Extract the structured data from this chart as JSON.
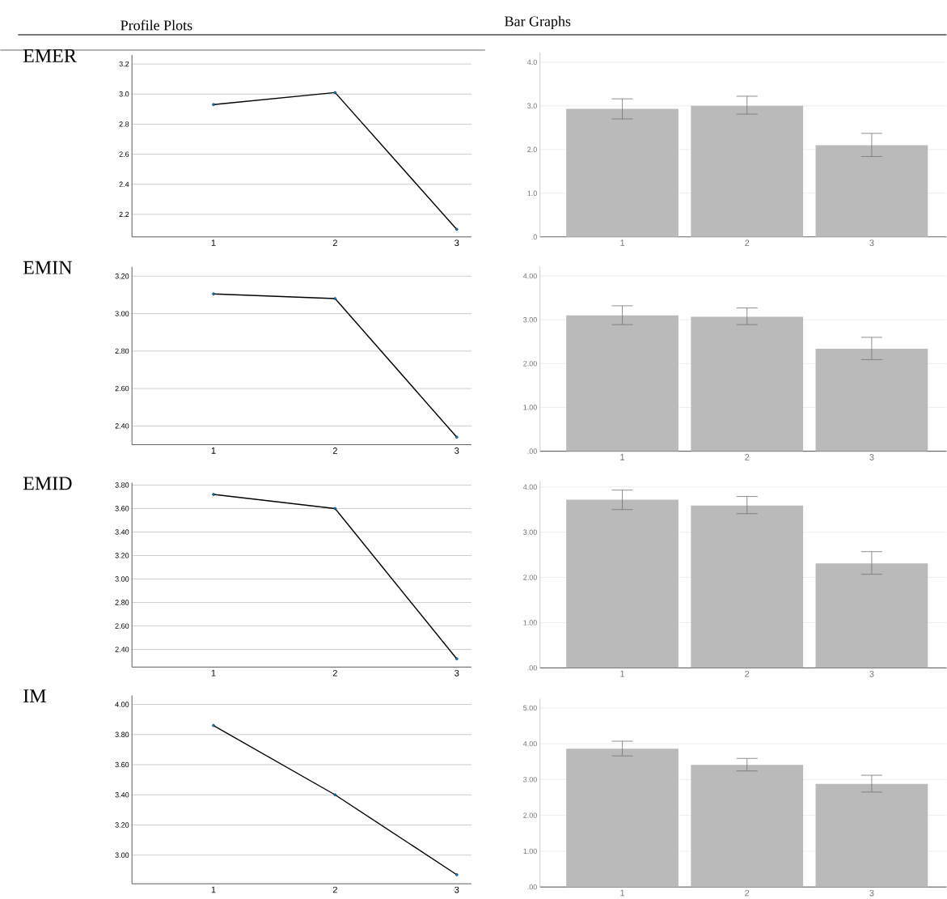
{
  "chart_data": [
    {
      "type": "line",
      "title": "EMER",
      "annotations": [
        "Profile Plots"
      ],
      "categories": [
        "1",
        "2",
        "3"
      ],
      "values": [
        2.93,
        3.01,
        2.1
      ],
      "color": "#000000",
      "marker": "circle",
      "grid": "y",
      "ylim": [
        2.05,
        3.26
      ],
      "yticks": [
        {
          "value": 2.2,
          "label": "2.2"
        },
        {
          "value": 2.4,
          "label": "2.4"
        },
        {
          "value": 2.6,
          "label": "2.6"
        },
        {
          "value": 2.8,
          "label": "2.8"
        },
        {
          "value": 3.0,
          "label": "3.0"
        },
        {
          "value": 3.2,
          "label": "3.2"
        }
      ]
    },
    {
      "type": "bar",
      "annotations": [
        "Bar Graphs"
      ],
      "categories": [
        "1",
        "2",
        "3"
      ],
      "values": [
        2.93,
        3.0,
        2.1
      ],
      "errors": [
        [
          2.7,
          3.16
        ],
        [
          2.81,
          3.22
        ],
        [
          1.84,
          2.37
        ]
      ],
      "color": "#bababa",
      "grid": "y",
      "ylim": [
        0,
        4.22
      ],
      "yticks": [
        {
          "value": 0,
          "label": ".0"
        },
        {
          "value": 1,
          "label": "1.0"
        },
        {
          "value": 2,
          "label": "2.0"
        },
        {
          "value": 3,
          "label": "3.0"
        },
        {
          "value": 4,
          "label": "4.0"
        }
      ]
    },
    {
      "type": "line",
      "title": "EMIN",
      "categories": [
        "1",
        "2",
        "3"
      ],
      "values": [
        3.105,
        3.08,
        2.34
      ],
      "color": "#000000",
      "marker": "circle",
      "grid": "y",
      "ylim": [
        2.3,
        3.25
      ],
      "yticks": [
        {
          "value": 2.4,
          "label": "2.40"
        },
        {
          "value": 2.6,
          "label": "2.60"
        },
        {
          "value": 2.8,
          "label": "2.80"
        },
        {
          "value": 3.0,
          "label": "3.00"
        },
        {
          "value": 3.2,
          "label": "3.20"
        }
      ]
    },
    {
      "type": "bar",
      "categories": [
        "1",
        "2",
        "3"
      ],
      "values": [
        3.1,
        3.07,
        2.34
      ],
      "errors": [
        [
          2.89,
          3.32
        ],
        [
          2.89,
          3.27
        ],
        [
          2.09,
          2.6
        ]
      ],
      "color": "#bababa",
      "grid": "y",
      "ylim": [
        0,
        4.21
      ],
      "yticks": [
        {
          "value": 0,
          "label": ".00"
        },
        {
          "value": 1,
          "label": "1.00"
        },
        {
          "value": 2,
          "label": "2.00"
        },
        {
          "value": 3,
          "label": "3.00"
        },
        {
          "value": 4,
          "label": "4.00"
        }
      ]
    },
    {
      "type": "line",
      "title": "EMID",
      "categories": [
        "1",
        "2",
        "3"
      ],
      "values": [
        3.72,
        3.6,
        2.32
      ],
      "color": "#000000",
      "marker": "circle",
      "grid": "y",
      "ylim": [
        2.25,
        3.82
      ],
      "yticks": [
        {
          "value": 2.4,
          "label": "2.40"
        },
        {
          "value": 2.6,
          "label": "2.60"
        },
        {
          "value": 2.8,
          "label": "2.80"
        },
        {
          "value": 3.0,
          "label": "3.00"
        },
        {
          "value": 3.2,
          "label": "3.20"
        },
        {
          "value": 3.4,
          "label": "3.40"
        },
        {
          "value": 3.6,
          "label": "3.60"
        },
        {
          "value": 3.8,
          "label": "3.80"
        }
      ]
    },
    {
      "type": "bar",
      "categories": [
        "1",
        "2",
        "3"
      ],
      "values": [
        3.72,
        3.59,
        2.31
      ],
      "errors": [
        [
          3.5,
          3.93
        ],
        [
          3.41,
          3.79
        ],
        [
          2.07,
          2.57
        ]
      ],
      "color": "#bababa",
      "grid": "y",
      "ylim": [
        0,
        4.13
      ],
      "yticks": [
        {
          "value": 0,
          "label": ".00"
        },
        {
          "value": 1,
          "label": "1.00"
        },
        {
          "value": 2,
          "label": "2.00"
        },
        {
          "value": 3,
          "label": "3.00"
        },
        {
          "value": 4,
          "label": "4.00"
        }
      ]
    },
    {
      "type": "line",
      "title": "IM",
      "categories": [
        "1",
        "2",
        "3"
      ],
      "values": [
        3.86,
        3.4,
        2.87
      ],
      "color": "#000000",
      "marker": "circle",
      "grid": "y",
      "ylim": [
        2.81,
        4.06
      ],
      "yticks": [
        {
          "value": 3.0,
          "label": "3.00"
        },
        {
          "value": 3.2,
          "label": "3.20"
        },
        {
          "value": 3.4,
          "label": "3.40"
        },
        {
          "value": 3.6,
          "label": "3.60"
        },
        {
          "value": 3.8,
          "label": "3.80"
        },
        {
          "value": 4.0,
          "label": "4.00"
        }
      ]
    },
    {
      "type": "bar",
      "categories": [
        "1",
        "2",
        "3"
      ],
      "values": [
        3.86,
        3.41,
        2.88
      ],
      "errors": [
        [
          3.66,
          4.07
        ],
        [
          3.24,
          3.59
        ],
        [
          2.65,
          3.12
        ]
      ],
      "color": "#bababa",
      "grid": "y",
      "ylim": [
        0,
        5.26
      ],
      "yticks": [
        {
          "value": 0,
          "label": ".00"
        },
        {
          "value": 1,
          "label": "1.00"
        },
        {
          "value": 2,
          "label": "2.00"
        },
        {
          "value": 3,
          "label": "3.00"
        },
        {
          "value": 4,
          "label": "4.00"
        },
        {
          "value": 5,
          "label": "5.00"
        }
      ]
    }
  ]
}
